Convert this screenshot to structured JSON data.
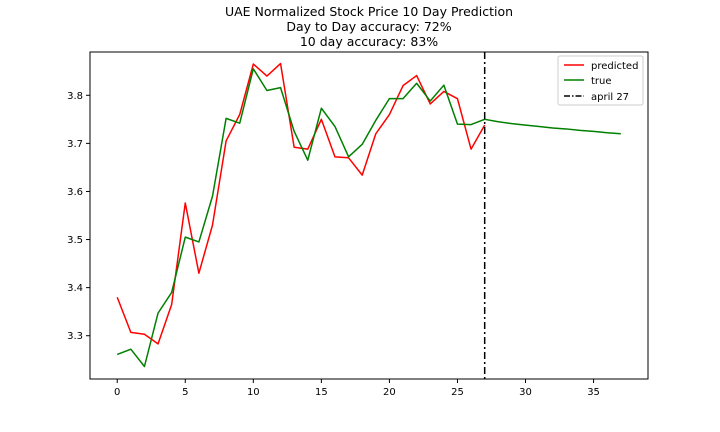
{
  "chart_data": {
    "type": "line",
    "title": "UAE Normalized Stock Price 10 Day Prediction",
    "subtitle_lines": [
      "Day to Day accuracy: 72%",
      "10 day accuracy: 83%"
    ],
    "xlabel": "",
    "ylabel": "",
    "xlim": [
      -2,
      39
    ],
    "ylim": [
      3.21,
      3.89
    ],
    "x_ticks": [
      0,
      5,
      10,
      15,
      20,
      25,
      30,
      35
    ],
    "y_ticks": [
      3.3,
      3.4,
      3.5,
      3.6,
      3.7,
      3.8
    ],
    "grid": false,
    "legend_position": "top-right",
    "series": [
      {
        "name": "predicted",
        "color": "#ff0000",
        "x": [
          0,
          1,
          2,
          3,
          4,
          5,
          6,
          7,
          8,
          9,
          10,
          11,
          12,
          13,
          14,
          15,
          16,
          17,
          18,
          19,
          20,
          21,
          22,
          23,
          24,
          25,
          26,
          27
        ],
        "values": [
          3.38,
          3.307,
          3.303,
          3.283,
          3.365,
          3.576,
          3.43,
          3.53,
          3.705,
          3.76,
          3.865,
          3.84,
          3.866,
          3.692,
          3.688,
          3.75,
          3.672,
          3.67,
          3.634,
          3.72,
          3.76,
          3.82,
          3.841,
          3.782,
          3.808,
          3.793,
          3.688,
          3.738
        ]
      },
      {
        "name": "true",
        "color": "#008000",
        "x": [
          0,
          1,
          2,
          3,
          4,
          5,
          6,
          7,
          8,
          9,
          10,
          11,
          12,
          13,
          14,
          15,
          16,
          17,
          18,
          19,
          20,
          21,
          22,
          23,
          24,
          25,
          26,
          27,
          28,
          29,
          30,
          31,
          32,
          33,
          34,
          35,
          36,
          37
        ],
        "values": [
          3.261,
          3.272,
          3.236,
          3.347,
          3.39,
          3.505,
          3.495,
          3.59,
          3.752,
          3.742,
          3.855,
          3.81,
          3.816,
          3.725,
          3.665,
          3.773,
          3.735,
          3.672,
          3.698,
          3.748,
          3.793,
          3.793,
          3.825,
          3.788,
          3.821,
          3.74,
          3.739,
          3.75,
          3.745,
          3.741,
          3.738,
          3.735,
          3.732,
          3.73,
          3.727,
          3.725,
          3.722,
          3.72
        ]
      }
    ],
    "annotations": [
      {
        "type": "vline",
        "x": 27,
        "label": "april 27",
        "color": "#000000",
        "style": "dashdot"
      }
    ]
  }
}
